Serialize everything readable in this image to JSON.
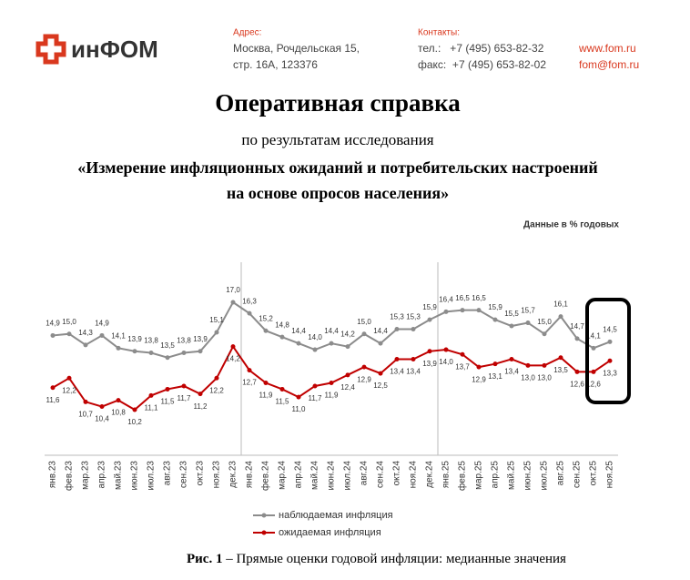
{
  "header": {
    "logo": "инФОМ",
    "address_label": "Адрес:",
    "address_lines": [
      "Москва, Рочдельская 15,",
      "стр. 16А, 123376"
    ],
    "contacts_label": "Контакты:",
    "phone": "тел.:   +7 (495) 653-82-32",
    "fax": "факс:  +7 (495) 653-82-02",
    "site": "www.fom.ru",
    "email": "fom@fom.ru"
  },
  "title": "Оперативная справка",
  "subtitle": "по результатам исследования",
  "study_lines": [
    "«Измерение инфляционных ожиданий и потребительских настроений",
    "на основе опросов населения»"
  ],
  "chart_data": {
    "type": "line",
    "note": "Данные в % годовых",
    "categories": [
      "янв.23",
      "фев.23",
      "мар.23",
      "апр.23",
      "май.23",
      "июн.23",
      "июл.23",
      "авг.23",
      "сен.23",
      "окт.23",
      "ноя.23",
      "дек.23",
      "янв.24",
      "фев.24",
      "мар.24",
      "апр.24",
      "май.24",
      "июн.24",
      "июл.24",
      "авг.24",
      "сен.24",
      "окт.24",
      "ноя.24",
      "дек.24",
      "янв.25",
      "фев.25",
      "мар.25",
      "апр.25",
      "май.25",
      "июн.25",
      "июл.25",
      "авг.25",
      "сен.25",
      "окт.25",
      "ноя.25"
    ],
    "series": [
      {
        "name": "наблюдаемая инфляция",
        "color": "#8c8c8c",
        "values": [
          14.9,
          15.0,
          14.3,
          14.9,
          14.1,
          13.9,
          13.8,
          13.5,
          13.8,
          13.9,
          15.1,
          17.0,
          16.3,
          15.2,
          14.8,
          14.4,
          14.0,
          14.4,
          14.2,
          15.0,
          14.4,
          15.3,
          15.3,
          15.9,
          16.4,
          16.5,
          16.5,
          15.9,
          15.5,
          15.7,
          15.0,
          16.1,
          14.7,
          14.1,
          14.5
        ],
        "value_labels": [
          "14,9",
          "15,0",
          "14,3",
          "14,9",
          "14,1",
          "13,9",
          "13,8",
          "13,5",
          "13,8",
          "13,9",
          "15,1",
          "17,0",
          "16,3",
          "15,2",
          "14,8",
          "14,4",
          "14,0",
          "14,4",
          "14,2",
          "15,0",
          "14,4",
          "15,3",
          "15,3",
          "15,9",
          "16,4",
          "16,5",
          "16,5",
          "15,9",
          "15,5",
          "15,7",
          "15,0",
          "16,1",
          "14,7",
          "14,1",
          "14,5"
        ]
      },
      {
        "name": "ожидаемая инфляция",
        "color": "#c00000",
        "values": [
          11.6,
          12.2,
          10.7,
          10.4,
          10.8,
          10.2,
          11.1,
          11.5,
          11.7,
          11.2,
          12.2,
          14.2,
          12.7,
          11.9,
          11.5,
          11.0,
          11.7,
          11.9,
          12.4,
          12.9,
          12.5,
          13.4,
          13.4,
          13.9,
          14.0,
          13.7,
          12.9,
          13.1,
          13.4,
          13.0,
          13.0,
          13.5,
          12.6,
          12.6,
          13.3
        ],
        "value_labels": [
          "11,6",
          "12,2",
          "10,7",
          "10,4",
          "10,8",
          "10,2",
          "11,1",
          "11,5",
          "11,7",
          "11,2",
          "12,2",
          "14,2",
          "12,7",
          "11,9",
          "11,5",
          "11,0",
          "11,7",
          "11,9",
          "12,4",
          "12,9",
          "12,5",
          "13,4",
          "13,4",
          "13,9",
          "14,0",
          "13,7",
          "12,9",
          "13,1",
          "13,4",
          "13,0",
          "13,0",
          "13,5",
          "12,6",
          "12,6",
          "13,3"
        ]
      }
    ]
  },
  "caption": {
    "label": "Рис. 1",
    "text": " – Прямые оценки годовой инфляции: медианные значения"
  }
}
